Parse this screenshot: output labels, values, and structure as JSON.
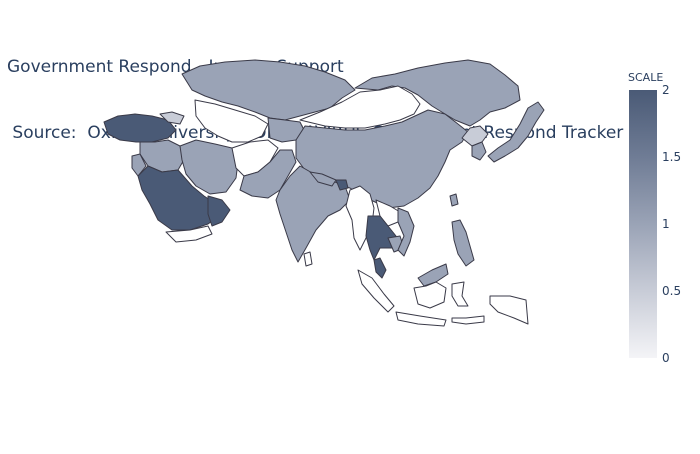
{
  "title": {
    "line1": "Government Respond - Income Support",
    "line2": " Source:  Oxford University CORONAVIRUS Government Respond Tracker"
  },
  "colorbar": {
    "title": "SCALE",
    "ticks": [
      "2",
      "1.5",
      "1",
      "0.5",
      "0"
    ],
    "colors": {
      "v2": "#4a5a76",
      "v1": "#9aa3b6",
      "v05": "#c8ccd7",
      "v0": "#ffffff"
    }
  },
  "chart_data": {
    "type": "choropleth",
    "scope": "asia",
    "colorscale_range": [
      0,
      2
    ],
    "regions": [
      {
        "name": "Turkey",
        "value": 2
      },
      {
        "name": "Saudi Arabia",
        "value": 2
      },
      {
        "name": "Oman",
        "value": 2
      },
      {
        "name": "Thailand",
        "value": 2
      },
      {
        "name": "Bangladesh",
        "value": 2
      },
      {
        "name": "Malaysia (peninsular)",
        "value": 2
      },
      {
        "name": "Kazakhstan",
        "value": 1
      },
      {
        "name": "Mongolia",
        "value": 0
      },
      {
        "name": "China",
        "value": 1
      },
      {
        "name": "Russia (east)",
        "value": 1
      },
      {
        "name": "India",
        "value": 1
      },
      {
        "name": "Pakistan",
        "value": 1
      },
      {
        "name": "Iran",
        "value": 1
      },
      {
        "name": "Iraq",
        "value": 1
      },
      {
        "name": "Afghanistan",
        "value": 0
      },
      {
        "name": "Japan",
        "value": 1
      },
      {
        "name": "South Korea",
        "value": 1
      },
      {
        "name": "North Korea",
        "value": 0.5
      },
      {
        "name": "Philippines",
        "value": 1
      },
      {
        "name": "Indonesia",
        "value": 0
      },
      {
        "name": "Yemen",
        "value": 0
      },
      {
        "name": "Myanmar",
        "value": 0
      },
      {
        "name": "Laos",
        "value": 0
      },
      {
        "name": "Vietnam",
        "value": 1
      },
      {
        "name": "Cambodia",
        "value": 1
      },
      {
        "name": "Nepal",
        "value": 1
      },
      {
        "name": "Uzbekistan",
        "value": 0
      },
      {
        "name": "Turkmenistan",
        "value": 0
      },
      {
        "name": "Kyrgyzstan",
        "value": 1
      },
      {
        "name": "Tajikistan",
        "value": 1
      },
      {
        "name": "Georgia",
        "value": 0.5
      },
      {
        "name": "Israel",
        "value": 1
      },
      {
        "name": "Jordan",
        "value": 1
      },
      {
        "name": "Syria",
        "value": 1
      },
      {
        "name": "Borneo (Malaysia)",
        "value": 1
      },
      {
        "name": "Sri Lanka",
        "value": 0
      },
      {
        "name": "Taiwan",
        "value": 1
      }
    ]
  }
}
